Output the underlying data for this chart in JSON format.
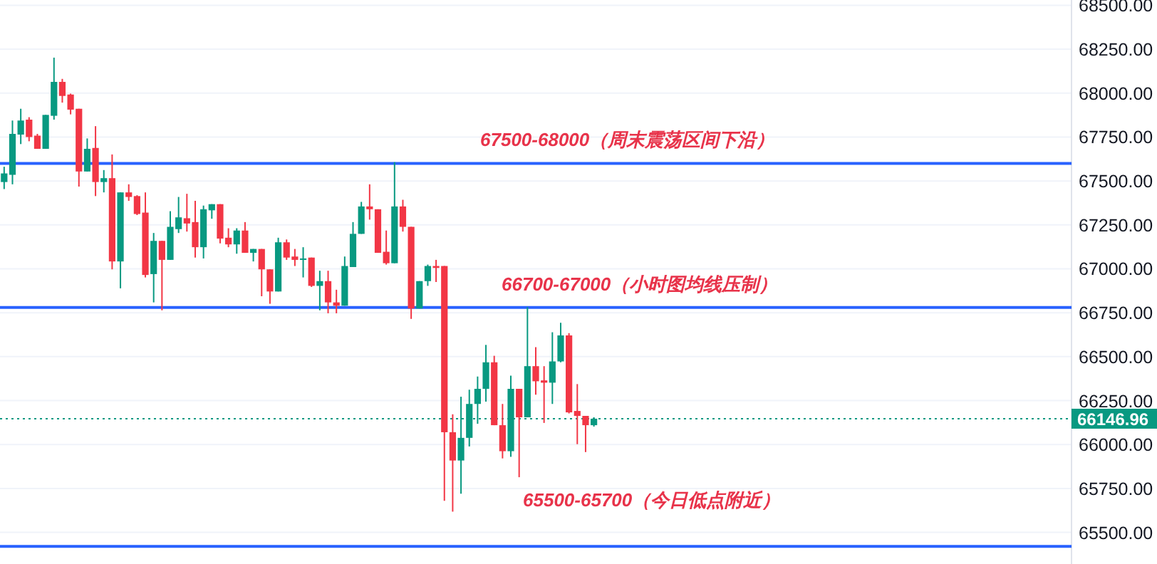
{
  "chart_data": {
    "type": "candlestick",
    "categories": [
      null,
      null,
      null,
      null,
      null,
      null,
      null,
      null,
      null,
      null,
      null,
      null,
      null,
      null,
      null,
      null,
      null,
      null,
      null,
      null,
      null,
      null,
      null,
      null,
      null,
      null,
      null,
      null,
      null,
      null,
      null,
      null,
      null,
      null,
      null,
      null,
      null,
      null,
      null,
      null,
      null,
      null,
      null,
      null,
      null,
      null,
      null,
      null,
      null,
      null,
      null,
      null,
      null,
      null,
      null,
      null,
      null,
      null,
      null,
      null,
      null,
      null,
      null,
      null,
      null,
      null,
      null,
      null,
      null,
      null,
      null,
      null,
      null,
      null,
      null,
      null,
      null,
      null,
      null,
      null,
      null,
      null,
      null,
      null,
      null,
      null,
      null,
      null,
      null,
      null,
      null,
      null,
      null,
      null,
      null,
      null,
      null,
      null,
      null,
      null,
      null,
      null,
      null,
      null,
      null,
      null,
      null,
      null,
      null,
      null,
      null,
      null,
      null,
      null,
      null,
      null,
      null,
      null,
      null,
      null,
      null,
      null,
      null,
      null,
      null,
      null,
      null,
      null,
      null
    ],
    "ohlc": [
      [
        67494,
        67581,
        67454,
        67543
      ],
      [
        67535,
        67844,
        67481,
        67768
      ],
      [
        67764,
        67911,
        67710,
        67844
      ],
      [
        67849,
        67863,
        67726,
        67750
      ],
      [
        67758,
        67768,
        67683,
        67683
      ],
      [
        67683,
        67876,
        67683,
        67876
      ],
      [
        67871,
        68202,
        67849,
        68064
      ],
      [
        68064,
        68081,
        67946,
        67984
      ],
      [
        67992,
        67997,
        67879,
        67906
      ],
      [
        67911,
        67911,
        67468,
        67554
      ],
      [
        67554,
        67742,
        67554,
        67683
      ],
      [
        67688,
        67812,
        67414,
        67494
      ],
      [
        67494,
        67562,
        67435,
        67516
      ],
      [
        67516,
        67651,
        66997,
        67042
      ],
      [
        67042,
        67435,
        66889,
        67435
      ],
      [
        67435,
        67481,
        67387,
        67409
      ],
      [
        67414,
        67419,
        67306,
        67312
      ],
      [
        67320,
        67435,
        66951,
        66965
      ],
      [
        66970,
        67204,
        66809,
        67159
      ],
      [
        67159,
        67159,
        66764,
        67051
      ],
      [
        67051,
        67328,
        67051,
        67239
      ],
      [
        67226,
        67409,
        67204,
        67293
      ],
      [
        67288,
        67427,
        67212,
        67258
      ],
      [
        67266,
        67387,
        67064,
        67123
      ],
      [
        67123,
        67360,
        67059,
        67339
      ],
      [
        67333,
        67368,
        67285,
        67368
      ],
      [
        67368,
        67368,
        67145,
        67172
      ],
      [
        67177,
        67231,
        67123,
        67139
      ],
      [
        67139,
        67231,
        67086,
        67218
      ],
      [
        67218,
        67266,
        67091,
        67091
      ],
      [
        67091,
        67113,
        67042,
        67113
      ],
      [
        67113,
        67113,
        66844,
        66997
      ],
      [
        66997,
        66997,
        66801,
        66871
      ],
      [
        66871,
        67177,
        66871,
        67151
      ],
      [
        67151,
        67167,
        67051,
        67064
      ],
      [
        67070,
        67113,
        67016,
        67051
      ],
      [
        67051,
        67123,
        66951,
        67059
      ],
      [
        67064,
        67064,
        66897,
        66903
      ],
      [
        66903,
        66989,
        66764,
        66930
      ],
      [
        66930,
        66989,
        66747,
        66809
      ],
      [
        66809,
        66881,
        66747,
        66790
      ],
      [
        66790,
        67070,
        66790,
        67016
      ],
      [
        67010,
        67266,
        67010,
        67199
      ],
      [
        67199,
        67381,
        67199,
        67355
      ],
      [
        67355,
        67481,
        67280,
        67339
      ],
      [
        67339,
        67339,
        67091,
        67091
      ],
      [
        67097,
        67218,
        67024,
        67032
      ],
      [
        67032,
        67607,
        67032,
        67355
      ],
      [
        67355,
        67393,
        67212,
        67239
      ],
      [
        67239,
        67239,
        66715,
        66774
      ],
      [
        66774,
        66930,
        66774,
        66930
      ],
      [
        66930,
        67024,
        66903,
        67016
      ],
      [
        67016,
        67051,
        66925,
        67005
      ],
      [
        67016,
        67016,
        65680,
        66070
      ],
      [
        66070,
        66172,
        65618,
        65909
      ],
      [
        65909,
        66272,
        65720,
        66038
      ],
      [
        66038,
        66312,
        65989,
        66231
      ],
      [
        66231,
        66387,
        66118,
        66317
      ],
      [
        66317,
        66567,
        66244,
        66468
      ],
      [
        66468,
        66505,
        66110,
        66110
      ],
      [
        66110,
        66231,
        65921,
        65962
      ],
      [
        65962,
        66392,
        65930,
        66317
      ],
      [
        66317,
        66317,
        65814,
        66155
      ],
      [
        66155,
        66782,
        66155,
        66446
      ],
      [
        66446,
        66554,
        66284,
        66360
      ],
      [
        66365,
        66446,
        66123,
        66352
      ],
      [
        66352,
        66639,
        66231,
        66473
      ],
      [
        66473,
        66693,
        66468,
        66621
      ],
      [
        66621,
        66634,
        66177,
        66183
      ],
      [
        66191,
        66344,
        66002,
        66163
      ],
      [
        66163,
        66163,
        65957,
        66110
      ],
      [
        66110,
        66155,
        66102,
        66146.96
      ],
      null,
      null,
      null,
      null,
      null,
      null,
      null,
      null,
      null,
      null,
      null,
      null,
      null,
      null,
      null,
      null,
      null,
      null,
      null,
      null,
      null,
      null,
      null,
      null,
      null,
      null,
      null,
      null,
      null,
      null,
      null,
      null,
      null,
      null,
      null,
      null,
      null,
      null,
      null,
      null,
      null,
      null,
      null,
      null,
      null,
      null,
      null,
      null,
      null,
      null,
      null,
      null,
      null,
      null,
      null,
      null,
      null
    ],
    "colors": [
      "#089981",
      "#089981",
      "#089981",
      "#f23645",
      "#f23645",
      "#089981",
      "#089981",
      "#f23645",
      "#f23645",
      "#f23645",
      "#089981",
      "#f23645",
      "#089981",
      "#f23645",
      "#089981",
      "#f23645",
      "#f23645",
      "#f23645",
      "#089981",
      "#f23645",
      "#089981",
      "#089981",
      "#f23645",
      "#f23645",
      "#089981",
      "#089981",
      "#f23645",
      "#f23645",
      "#089981",
      "#f23645",
      "#089981",
      "#f23645",
      "#f23645",
      "#089981",
      "#f23645",
      "#f23645",
      "#089981",
      "#f23645",
      "#089981",
      "#f23645",
      "#f23645",
      "#089981",
      "#089981",
      "#089981",
      "#f23645",
      "#f23645",
      "#f23645",
      "#089981",
      "#f23645",
      "#f23645",
      "#089981",
      "#089981",
      "#f23645",
      "#f23645",
      "#f23645",
      "#089981",
      "#089981",
      "#089981",
      "#089981",
      "#f23645",
      "#f23645",
      "#089981",
      "#f23645",
      "#089981",
      "#f23645",
      "#f23645",
      "#089981",
      "#089981",
      "#f23645",
      "#f23645",
      "#f23645",
      "#089981",
      null,
      null,
      null,
      null,
      null,
      null,
      null,
      null,
      null,
      null,
      null,
      null,
      null,
      null,
      null,
      null,
      null,
      null,
      null,
      null,
      null,
      null,
      null,
      null,
      null,
      null,
      null,
      null,
      null,
      null,
      null,
      null,
      null,
      null,
      null,
      null,
      null,
      null,
      null,
      null,
      null,
      null,
      null,
      null,
      null,
      null,
      null,
      null,
      null,
      null,
      null,
      null,
      null,
      null,
      null,
      null,
      null
    ],
    "ylim": [
      65320,
      68530
    ],
    "yticks": [
      {
        "value": 65500,
        "label": "65500.00"
      },
      {
        "value": 65750,
        "label": "65750.00"
      },
      {
        "value": 66000,
        "label": "66000.00"
      },
      {
        "value": 66250,
        "label": "66250.00"
      },
      {
        "value": 66500,
        "label": "66500.00"
      },
      {
        "value": 66750,
        "label": "66750.00"
      },
      {
        "value": 67000,
        "label": "67000.00"
      },
      {
        "value": 67250,
        "label": "67250.00"
      },
      {
        "value": 67500,
        "label": "67500.00"
      },
      {
        "value": 67750,
        "label": "67750.00"
      },
      {
        "value": 68000,
        "label": "68000.00"
      },
      {
        "value": 68250,
        "label": "68250.00"
      },
      {
        "value": 68500,
        "label": "68500.00"
      }
    ],
    "tick_labels": "y",
    "grid": "y",
    "ref_lines": [
      {
        "axis": "y",
        "value": 67600,
        "label": "67500-68000（周末震荡区间下沿）",
        "color": "#2962ff",
        "line_style": "solid"
      },
      {
        "axis": "y",
        "value": 66780,
        "label": "66700-67000（小时图均线压制）",
        "color": "#2962ff",
        "line_style": "solid"
      },
      {
        "axis": "y",
        "value": 65420,
        "label": "65500-65700（今日低点附近）",
        "color": "#2962ff",
        "line_style": "solid"
      },
      {
        "axis": "y",
        "value": 66146.96,
        "label": "66146.96",
        "color": "#089981",
        "line_style": "dotted"
      }
    ]
  }
}
